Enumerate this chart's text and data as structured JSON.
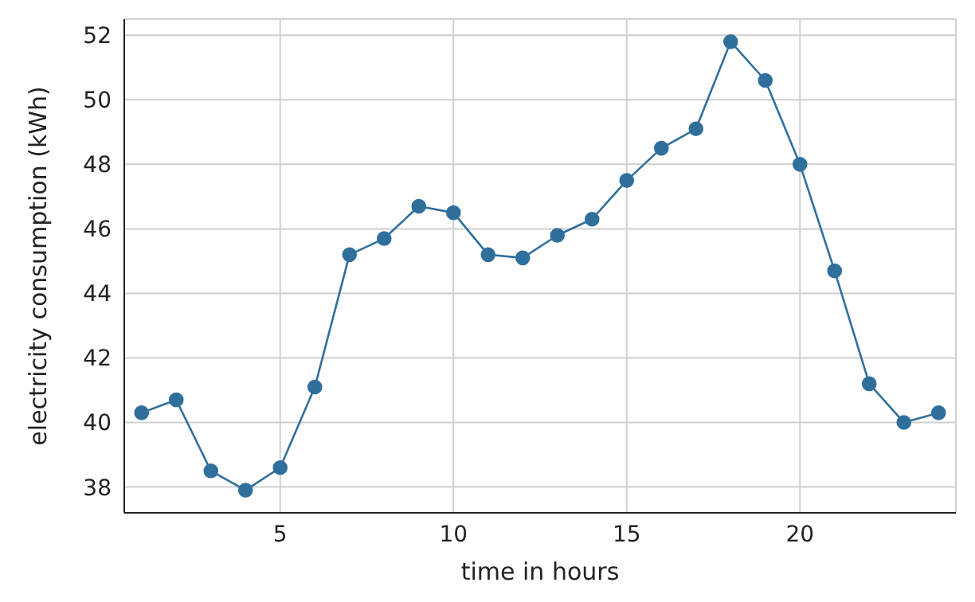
{
  "chart_data": {
    "type": "line",
    "xlabel": "time in hours",
    "ylabel": "electricity consumption (kWh)",
    "x": [
      1,
      2,
      3,
      4,
      5,
      6,
      7,
      8,
      9,
      10,
      11,
      12,
      13,
      14,
      15,
      16,
      17,
      18,
      19,
      20,
      21,
      22,
      23,
      24
    ],
    "series": [
      {
        "color": "#2f6f9c",
        "values": [
          40.3,
          40.7,
          38.5,
          37.9,
          38.6,
          41.1,
          45.2,
          45.7,
          46.7,
          46.5,
          45.2,
          45.1,
          45.8,
          46.3,
          47.5,
          48.5,
          49.1,
          51.8,
          50.6,
          48.0,
          44.7,
          41.2,
          40.0,
          40.3
        ]
      }
    ],
    "xlim": [
      0.5,
      24.5
    ],
    "xticks": [
      5,
      10,
      15,
      20
    ],
    "ylim": [
      37.2,
      52.5
    ],
    "yticks": [
      38,
      40,
      42,
      44,
      46,
      48,
      50,
      52
    ],
    "grid": true,
    "marker": "circle",
    "line_style": "solid",
    "legend": false
  }
}
